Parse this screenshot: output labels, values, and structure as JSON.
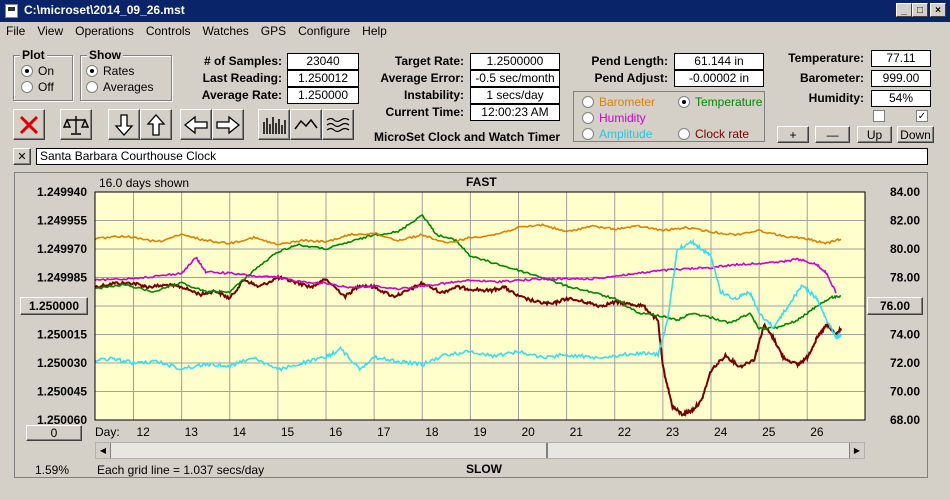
{
  "window": {
    "title": "C:\\microset\\2014_09_26.mst"
  },
  "menu": [
    "File",
    "View",
    "Operations",
    "Controls",
    "Watches",
    "GPS",
    "Configure",
    "Help"
  ],
  "plot": {
    "label": "Plot",
    "on": "On",
    "off": "Off",
    "selected": "On"
  },
  "show": {
    "label": "Show",
    "rates": "Rates",
    "averages": "Averages",
    "selected": "Rates"
  },
  "stats": {
    "samples_label": "# of Samples:",
    "samples": "23040",
    "last_label": "Last Reading:",
    "last": "1.250012",
    "avg_label": "Average Rate:",
    "avg": "1.250000"
  },
  "target": {
    "rate_label": "Target Rate:",
    "rate": "1.2500000",
    "err_label": "Average Error:",
    "err": "-0.5 sec/month",
    "inst_label": "Instability:",
    "inst": "1 secs/day",
    "time_label": "Current Time:",
    "time": "12:00:23 AM",
    "app_name": "MicroSet Clock and Watch Timer"
  },
  "pend": {
    "length_label": "Pend Length:",
    "length": "61.144 in",
    "adjust_label": "Pend Adjust:",
    "adjust": "-0.00002 in"
  },
  "channels": {
    "barometer": "Barometer",
    "temperature": "Temperature",
    "humidity": "Humidity",
    "amplitude": "Amplitude",
    "clock_rate": "Clock rate",
    "selected": "Temperature"
  },
  "env": {
    "temp_label": "Temperature:",
    "temp": "77.11",
    "baro_label": "Barometer:",
    "baro": "999.00",
    "hum_label": "Humidity:",
    "hum": "54%"
  },
  "scale_buttons": {
    "plus": "+",
    "minus": "—",
    "up": "Up",
    "down": "Down"
  },
  "watch": {
    "close": "✕",
    "name": "Santa Barbara Courthouse Clock"
  },
  "colors": {
    "plot_bg": "#ffffcc",
    "rate": "#7a0000",
    "temperature": "#008800",
    "barometer": "#e08000",
    "humidity": "#d000d0",
    "amplitude": "#33e0f0",
    "grid": "#a0a0a0"
  },
  "icons": [
    "close-red-x-icon",
    "balance-scale-icon",
    "arrow-down-icon",
    "arrow-up-icon",
    "arrow-left-icon",
    "arrow-right-icon",
    "bar-graph-icon",
    "wave-icon",
    "multi-wave-icon"
  ],
  "chart_data": {
    "type": "line",
    "top_label": "FAST",
    "bottom_label": "SLOW",
    "days_shown": "16.0 days shown",
    "grid_note": "Each grid line = 1.037 secs/day",
    "percent": "1.59%",
    "left_center_button": "1.250000",
    "right_center_button": "76.00",
    "x_button": "0",
    "xlabel": "Day:",
    "x_ticks": [
      "12",
      "13",
      "14",
      "15",
      "16",
      "17",
      "18",
      "19",
      "20",
      "21",
      "22",
      "23",
      "24",
      "25",
      "26"
    ],
    "xlim": [
      11.2,
      27.2
    ],
    "y_left_ticks": [
      "1.249940",
      "1.249955",
      "1.249970",
      "1.249985",
      "1.250000",
      "1.250015",
      "1.250030",
      "1.250045",
      "1.250060"
    ],
    "ylim_left": [
      1.24994,
      1.25006
    ],
    "y_right_ticks": [
      "84.00",
      "82.00",
      "80.00",
      "78.00",
      "76.00",
      "74.00",
      "72.00",
      "70.00",
      "68.00"
    ],
    "ylim_right": [
      68,
      84
    ],
    "series": [
      {
        "key": "rate",
        "x": [
          11.2,
          11.6,
          12.0,
          12.3,
          12.7,
          13.0,
          13.4,
          13.7,
          14.0,
          14.3,
          14.6,
          15.0,
          15.3,
          15.7,
          16.0,
          16.4,
          16.7,
          17.0,
          17.4,
          17.7,
          18.0,
          18.4,
          18.7,
          19.0,
          19.4,
          19.7,
          20.0,
          20.4,
          20.7,
          21.0,
          21.4,
          21.7,
          22.0,
          22.3,
          22.6,
          22.9,
          23.0,
          23.2,
          23.4,
          23.6,
          23.8,
          24.0,
          24.3,
          24.6,
          24.9,
          25.1,
          25.3,
          25.5,
          25.8,
          26.0,
          26.2,
          26.4,
          26.6,
          26.7
        ],
        "y": [
          1.24999,
          1.249988,
          1.249988,
          1.24999,
          1.249989,
          1.24999,
          1.249994,
          1.249992,
          1.249996,
          1.249986,
          1.24999,
          1.249985,
          1.249987,
          1.24999,
          1.249986,
          1.249995,
          1.249989,
          1.24999,
          1.249995,
          1.249992,
          1.249988,
          1.249993,
          1.24999,
          1.249991,
          1.249992,
          1.24999,
          1.249995,
          1.249998,
          1.249999,
          1.249996,
          1.249998,
          1.25,
          1.249998,
          1.249999,
          1.25,
          1.250008,
          1.250032,
          1.250053,
          1.250057,
          1.250055,
          1.25005,
          1.250034,
          1.250026,
          1.250032,
          1.250028,
          1.25001,
          1.250017,
          1.250027,
          1.250031,
          1.250027,
          1.250017,
          1.25001,
          1.250015,
          1.250012
        ]
      },
      {
        "key": "temperature",
        "x": [
          11.2,
          11.8,
          12.4,
          13.0,
          13.5,
          14.0,
          14.5,
          15.0,
          15.4,
          16.0,
          16.5,
          17.0,
          17.5,
          18.0,
          18.3,
          18.7,
          19.0,
          19.5,
          20.0,
          20.5,
          21.0,
          21.5,
          22.0,
          22.5,
          23.0,
          23.3,
          23.6,
          24.0,
          24.4,
          24.8,
          25.0,
          25.4,
          25.8,
          26.2,
          26.5,
          26.7
        ],
        "y": [
          77.2,
          77.5,
          77.0,
          77.6,
          77.0,
          77.0,
          78.5,
          79.8,
          80.3,
          80.0,
          80.5,
          81.0,
          81.2,
          82.4,
          81.0,
          80.6,
          79.5,
          79.0,
          78.5,
          78.0,
          77.4,
          77.0,
          76.5,
          75.5,
          75.3,
          75.0,
          75.5,
          75.2,
          74.8,
          75.5,
          74.4,
          74.5,
          75.0,
          76.0,
          76.6,
          76.7
        ]
      },
      {
        "key": "barometer",
        "x": [
          11.2,
          11.8,
          12.5,
          13.0,
          13.5,
          14.0,
          14.5,
          15.0,
          15.5,
          16.0,
          16.5,
          17.0,
          17.5,
          18.0,
          18.5,
          19.0,
          19.5,
          20.0,
          20.5,
          21.0,
          21.5,
          22.0,
          22.5,
          23.0,
          23.5,
          24.0,
          24.5,
          25.0,
          25.5,
          26.0,
          26.4,
          26.7
        ],
        "y": [
          80.7,
          80.9,
          80.5,
          81.0,
          80.6,
          80.4,
          80.8,
          80.3,
          80.6,
          80.5,
          81.0,
          81.1,
          80.6,
          81.0,
          80.4,
          80.8,
          81.0,
          81.5,
          81.7,
          81.2,
          81.6,
          81.4,
          81.6,
          81.3,
          81.5,
          81.2,
          81.0,
          81.3,
          80.9,
          80.7,
          80.4,
          80.7
        ]
      },
      {
        "key": "humidity",
        "x": [
          11.2,
          11.8,
          12.5,
          13.0,
          13.3,
          13.5,
          14.0,
          14.5,
          15.0,
          15.5,
          16.0,
          16.5,
          17.0,
          17.5,
          18.0,
          18.5,
          19.0,
          19.5,
          20.0,
          20.5,
          21.0,
          21.5,
          22.0,
          22.5,
          23.0,
          23.5,
          24.0,
          24.5,
          25.0,
          25.5,
          25.8,
          26.2,
          26.4,
          26.6
        ],
        "y": [
          77.8,
          77.9,
          78.1,
          78.3,
          79.4,
          78.4,
          78.3,
          78.1,
          78.0,
          77.7,
          77.6,
          77.3,
          77.4,
          77.2,
          77.4,
          77.6,
          77.8,
          77.7,
          77.8,
          77.9,
          77.9,
          77.9,
          78.1,
          78.3,
          78.5,
          78.6,
          78.7,
          78.9,
          79.0,
          79.1,
          79.3,
          78.9,
          78.3,
          76.9
        ]
      },
      {
        "key": "amplitude",
        "x": [
          11.2,
          11.6,
          12.0,
          12.5,
          13.0,
          13.5,
          14.0,
          14.5,
          15.0,
          15.5,
          16.0,
          16.3,
          16.7,
          17.0,
          17.5,
          18.0,
          18.5,
          19.0,
          19.5,
          20.0,
          20.5,
          21.0,
          21.5,
          22.0,
          22.5,
          22.9,
          23.1,
          23.3,
          23.6,
          23.8,
          24.0,
          24.2,
          24.5,
          24.8,
          25.0,
          25.3,
          25.6,
          25.9,
          26.2,
          26.4,
          26.6,
          26.7
        ],
        "y": [
          72.2,
          72.3,
          72.0,
          72.1,
          71.6,
          71.9,
          71.8,
          72.4,
          71.5,
          72.0,
          72.4,
          73.0,
          71.6,
          72.4,
          72.1,
          71.9,
          72.6,
          72.8,
          72.5,
          72.8,
          72.4,
          72.6,
          72.4,
          72.5,
          72.7,
          72.6,
          75.0,
          80.0,
          80.5,
          80.0,
          79.5,
          77.0,
          76.5,
          77.0,
          75.5,
          74.5,
          76.0,
          77.5,
          76.5,
          75.0,
          73.8,
          74.0
        ]
      }
    ]
  }
}
